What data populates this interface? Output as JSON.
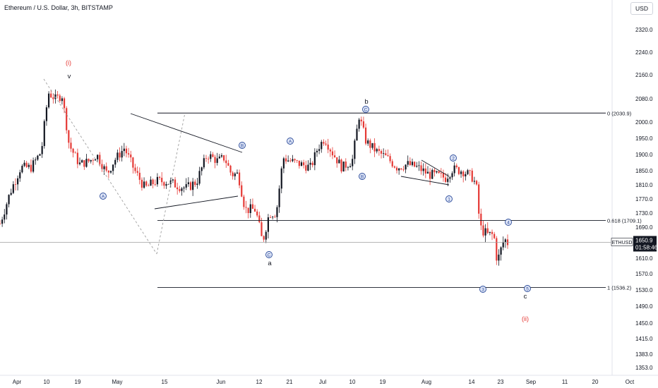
{
  "header": {
    "title": "Ethereum / U.S. Dollar, 3h, BITSTAMP",
    "currency": "USD"
  },
  "colors": {
    "up": "#131722",
    "down": "#e53935",
    "wave_red": "#e53935",
    "wave_blue": "#2a4a9a",
    "line": "#131722",
    "price_line": "#9e9e9e",
    "axis_text": "#131722"
  },
  "chart_data": {
    "type": "candlestick",
    "symbol_tag": "ETHUSD",
    "last_price": "1650.9",
    "countdown": "01:58:46",
    "y_ticks": [
      "2320.0",
      "2240.0",
      "2160.0",
      "2080.0",
      "2000.0",
      "1950.0",
      "1900.0",
      "1850.0",
      "1810.0",
      "1770.0",
      "1730.0",
      "1690.0",
      "1610.0",
      "1570.0",
      "1530.0",
      "1490.0",
      "1450.0",
      "1415.0",
      "1383.0",
      "1353.0"
    ],
    "x_ticks": [
      "Apr",
      "10",
      "19",
      "May",
      "15",
      "Jun",
      "12",
      "21",
      "Jul",
      "10",
      "19",
      "Aug",
      "14",
      "23",
      "Sep",
      "11",
      "20",
      "Oct"
    ],
    "fib_levels": [
      {
        "label": "0 (2030.9)",
        "price": 2030.9
      },
      {
        "label": "0.618 (1709.1)",
        "price": 1709.1
      },
      {
        "label": "1 (1536.2)",
        "price": 1536.2
      }
    ],
    "wave_labels": [
      {
        "text": "(i)",
        "style": "red"
      },
      {
        "text": "v",
        "style": "plain"
      },
      {
        "text": "A",
        "style": "circle"
      },
      {
        "text": "B",
        "style": "circle"
      },
      {
        "text": "C",
        "style": "circle"
      },
      {
        "text": "a",
        "style": "plain"
      },
      {
        "text": "A",
        "style": "circle"
      },
      {
        "text": "B",
        "style": "circle"
      },
      {
        "text": "C",
        "style": "circle"
      },
      {
        "text": "b",
        "style": "plain"
      },
      {
        "text": "1",
        "style": "circle"
      },
      {
        "text": "2",
        "style": "circle"
      },
      {
        "text": "3",
        "style": "circle"
      },
      {
        "text": "4",
        "style": "circle"
      },
      {
        "text": "5",
        "style": "circle"
      },
      {
        "text": "c",
        "style": "plain"
      },
      {
        "text": "(ii)",
        "style": "red"
      }
    ],
    "close_path": [
      [
        "2023-03-31",
        1700
      ],
      [
        "2023-04-03",
        1790
      ],
      [
        "2023-04-06",
        1860
      ],
      [
        "2023-04-09",
        1860
      ],
      [
        "2023-04-12",
        1910
      ],
      [
        "2023-04-14",
        2100
      ],
      [
        "2023-04-16",
        2080
      ],
      [
        "2023-04-18",
        2090
      ],
      [
        "2023-04-20",
        1930
      ],
      [
        "2023-04-23",
        1870
      ],
      [
        "2023-04-26",
        1880
      ],
      [
        "2023-04-28",
        1900
      ],
      [
        "2023-05-01",
        1840
      ],
      [
        "2023-05-03",
        1880
      ],
      [
        "2023-05-06",
        1920
      ],
      [
        "2023-05-09",
        1850
      ],
      [
        "2023-05-12",
        1800
      ],
      [
        "2023-05-15",
        1820
      ],
      [
        "2023-05-18",
        1820
      ],
      [
        "2023-05-21",
        1810
      ],
      [
        "2023-05-24",
        1800
      ],
      [
        "2023-05-27",
        1820
      ],
      [
        "2023-05-30",
        1900
      ],
      [
        "2023-06-02",
        1880
      ],
      [
        "2023-06-04",
        1890
      ],
      [
        "2023-06-06",
        1840
      ],
      [
        "2023-06-08",
        1840
      ],
      [
        "2023-06-10",
        1740
      ],
      [
        "2023-06-13",
        1740
      ],
      [
        "2023-06-15",
        1650
      ],
      [
        "2023-06-17",
        1730
      ],
      [
        "2023-06-19",
        1730
      ],
      [
        "2023-06-21",
        1890
      ],
      [
        "2023-06-23",
        1880
      ],
      [
        "2023-06-26",
        1870
      ],
      [
        "2023-06-29",
        1860
      ],
      [
        "2023-07-01",
        1920
      ],
      [
        "2023-07-03",
        1950
      ],
      [
        "2023-07-05",
        1910
      ],
      [
        "2023-07-08",
        1860
      ],
      [
        "2023-07-11",
        1880
      ],
      [
        "2023-07-13",
        2020
      ],
      [
        "2023-07-15",
        1940
      ],
      [
        "2023-07-18",
        1910
      ],
      [
        "2023-07-21",
        1890
      ],
      [
        "2023-07-24",
        1860
      ],
      [
        "2023-07-27",
        1870
      ],
      [
        "2023-07-30",
        1860
      ],
      [
        "2023-08-02",
        1840
      ],
      [
        "2023-08-05",
        1835
      ],
      [
        "2023-08-07",
        1830
      ],
      [
        "2023-08-09",
        1855
      ],
      [
        "2023-08-12",
        1850
      ],
      [
        "2023-08-15",
        1830
      ],
      [
        "2023-08-16",
        1800
      ],
      [
        "2023-08-17",
        1690
      ],
      [
        "2023-08-19",
        1670
      ],
      [
        "2023-08-21",
        1670
      ],
      [
        "2023-08-22",
        1600
      ],
      [
        "2023-08-24",
        1660
      ],
      [
        "2023-08-25",
        1650
      ]
    ]
  }
}
